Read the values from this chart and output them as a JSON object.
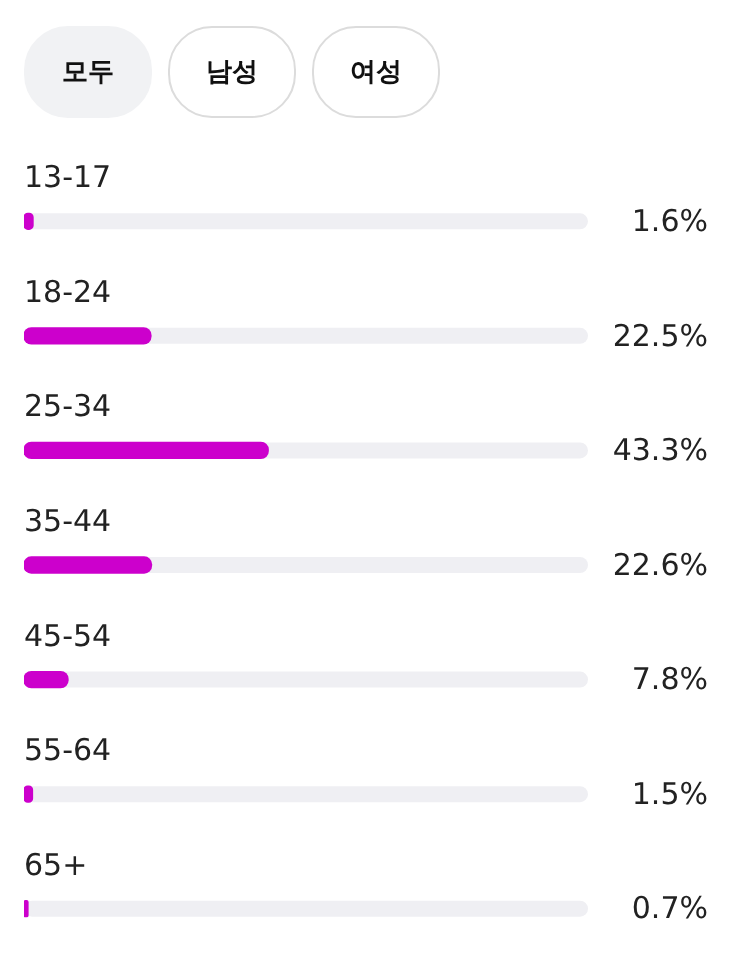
{
  "chart_data": {
    "type": "bar",
    "orientation": "horizontal",
    "categories": [
      "13-17",
      "18-24",
      "25-34",
      "35-44",
      "45-54",
      "55-64",
      "65+"
    ],
    "values": [
      1.6,
      22.5,
      43.3,
      22.6,
      7.8,
      1.5,
      0.7
    ],
    "value_labels": [
      "1.6%",
      "22.5%",
      "43.3%",
      "22.6%",
      "7.8%",
      "1.5%",
      "0.7%"
    ],
    "color": "#cc00cc",
    "xlim": [
      0,
      100
    ],
    "tick_labels": false,
    "legend": false,
    "annotations": [
      "모두",
      "남성",
      "여성"
    ]
  }
}
